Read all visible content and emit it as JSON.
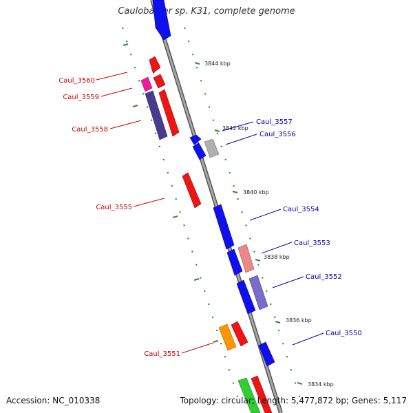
{
  "title": "Caulobacter sp. K31, complete genome",
  "footer": {
    "accession": "Accession: NC_010338",
    "summary": "Topology: circular; Length: 5,477,872 bp; Genes: 5,117"
  },
  "colors": {
    "backbone": "#888888",
    "tick": "#2e8b2e",
    "label_left": "#cc0000",
    "label_right": "#0000aa",
    "blue": "#1010ee",
    "red": "#ee1515",
    "pink": "#ee8888",
    "magenta": "#ee1c9a",
    "navy": "#4a3c8c",
    "purple": "#7a6ccc",
    "grey": "#b0b0b0",
    "orange": "#ff9500",
    "green": "#33cc33"
  },
  "kbp_labels": [
    "3844 kbp",
    "3842 kbp",
    "3840 kbp",
    "3838 kbp",
    "3836 kbp",
    "3834 kbp"
  ],
  "gene_labels": {
    "left": [
      "Caul_3560",
      "Caul_3559",
      "Caul_3558",
      "Caul_3555",
      "Caul_3551"
    ],
    "right": [
      "Caul_3557",
      "Caul_3556",
      "Caul_3554",
      "Caul_3553",
      "Caul_3552",
      "Caul_3550"
    ]
  }
}
